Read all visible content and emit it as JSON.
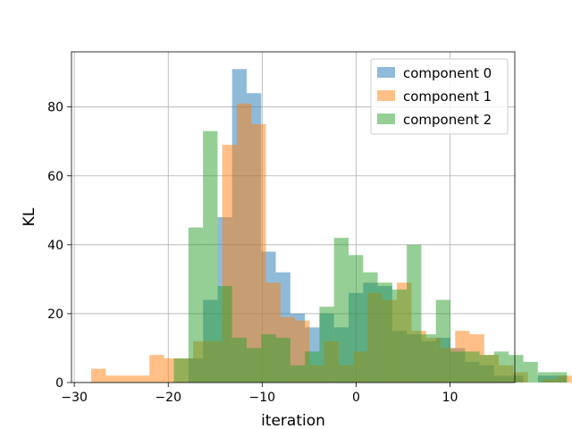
{
  "chart_data": {
    "type": "histogram",
    "title": "",
    "xlabel": "iteration",
    "ylabel": "KL",
    "xlim": [
      -30.3,
      16.9
    ],
    "ylim": [
      0,
      96
    ],
    "xticks": [
      -30,
      -20,
      -10,
      0,
      10
    ],
    "yticks": [
      0,
      20,
      40,
      60,
      80
    ],
    "grid": true,
    "legend_position": "top-right",
    "bin_width": 1.55,
    "alpha": 0.5,
    "series": [
      {
        "name": "component 0",
        "color": "#1f77b4",
        "bins_start": -19.4,
        "counts": [
          0,
          7,
          24,
          48,
          91,
          84,
          38,
          32,
          20,
          16,
          20,
          16,
          26,
          29,
          28,
          15,
          14,
          12,
          13,
          10,
          6,
          5,
          2,
          2,
          0,
          2,
          2
        ]
      },
      {
        "name": "component 1",
        "color": "#ff7f0e",
        "bins_start": -28.2,
        "counts": [
          4,
          2,
          2,
          2,
          8,
          7,
          7,
          12,
          12,
          69,
          81,
          75,
          29,
          19,
          18,
          5,
          12,
          5,
          9,
          26,
          24,
          29,
          15,
          13,
          10,
          15,
          14,
          8,
          5,
          3,
          0,
          1,
          2
        ]
      },
      {
        "name": "component 2",
        "color": "#2ca02c",
        "bins_start": -19.4,
        "counts": [
          7,
          45,
          73,
          28,
          13,
          10,
          14,
          13,
          5,
          9,
          22,
          42,
          37,
          32,
          29,
          27,
          40,
          14,
          24,
          9,
          9,
          8,
          9,
          8,
          6,
          3,
          3
        ]
      }
    ]
  }
}
